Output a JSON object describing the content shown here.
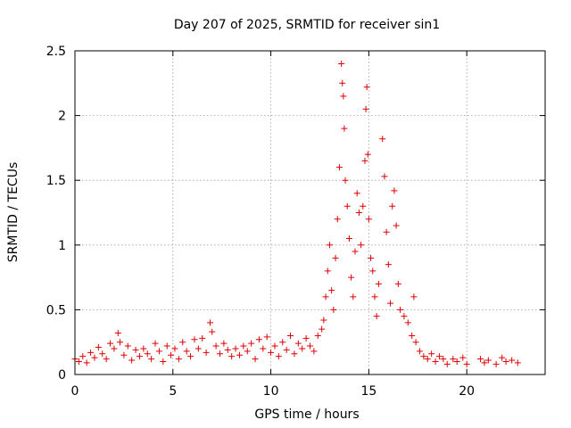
{
  "chart_data": {
    "type": "scatter",
    "title": "Day 207 of 2025, SRMTID for receiver sin1",
    "xlabel": "GPS time / hours",
    "ylabel": "SRMTID / TECUs",
    "xlim": [
      0,
      24
    ],
    "ylim": [
      0,
      2.5
    ],
    "xticks": [
      0,
      5,
      10,
      15,
      20
    ],
    "xtick_labels": [
      "0",
      "5",
      "10",
      "15",
      "20"
    ],
    "yticks": [
      0,
      0.5,
      1,
      1.5,
      2,
      2.5
    ],
    "ytick_labels": [
      "0",
      "0.5",
      "1",
      "1.5",
      "2",
      "2.5"
    ],
    "grid": true,
    "marker": "+",
    "series": [
      {
        "name": "sin1",
        "color": "#e00000",
        "points": [
          [
            0.0,
            0.12
          ],
          [
            0.2,
            0.1
          ],
          [
            0.4,
            0.14
          ],
          [
            0.6,
            0.09
          ],
          [
            0.8,
            0.17
          ],
          [
            1.0,
            0.13
          ],
          [
            1.2,
            0.21
          ],
          [
            1.4,
            0.16
          ],
          [
            1.6,
            0.12
          ],
          [
            1.8,
            0.24
          ],
          [
            2.0,
            0.2
          ],
          [
            2.2,
            0.32
          ],
          [
            2.3,
            0.25
          ],
          [
            2.5,
            0.15
          ],
          [
            2.7,
            0.22
          ],
          [
            2.9,
            0.11
          ],
          [
            3.1,
            0.19
          ],
          [
            3.3,
            0.14
          ],
          [
            3.5,
            0.2
          ],
          [
            3.7,
            0.16
          ],
          [
            3.9,
            0.12
          ],
          [
            4.1,
            0.24
          ],
          [
            4.3,
            0.18
          ],
          [
            4.5,
            0.1
          ],
          [
            4.7,
            0.22
          ],
          [
            4.9,
            0.15
          ],
          [
            5.1,
            0.2
          ],
          [
            5.3,
            0.12
          ],
          [
            5.5,
            0.25
          ],
          [
            5.7,
            0.18
          ],
          [
            5.9,
            0.14
          ],
          [
            6.1,
            0.27
          ],
          [
            6.3,
            0.2
          ],
          [
            6.5,
            0.28
          ],
          [
            6.7,
            0.17
          ],
          [
            6.9,
            0.4
          ],
          [
            7.0,
            0.33
          ],
          [
            7.2,
            0.22
          ],
          [
            7.4,
            0.16
          ],
          [
            7.6,
            0.24
          ],
          [
            7.8,
            0.19
          ],
          [
            8.0,
            0.14
          ],
          [
            8.2,
            0.2
          ],
          [
            8.4,
            0.15
          ],
          [
            8.6,
            0.22
          ],
          [
            8.8,
            0.18
          ],
          [
            9.0,
            0.24
          ],
          [
            9.2,
            0.12
          ],
          [
            9.4,
            0.27
          ],
          [
            9.6,
            0.2
          ],
          [
            9.8,
            0.29
          ],
          [
            10.0,
            0.17
          ],
          [
            10.2,
            0.22
          ],
          [
            10.4,
            0.14
          ],
          [
            10.6,
            0.25
          ],
          [
            10.8,
            0.19
          ],
          [
            11.0,
            0.3
          ],
          [
            11.2,
            0.16
          ],
          [
            11.4,
            0.24
          ],
          [
            11.6,
            0.2
          ],
          [
            11.8,
            0.28
          ],
          [
            12.0,
            0.22
          ],
          [
            12.2,
            0.18
          ],
          [
            12.4,
            0.3
          ],
          [
            12.6,
            0.35
          ],
          [
            12.7,
            0.42
          ],
          [
            12.8,
            0.6
          ],
          [
            12.9,
            0.8
          ],
          [
            13.0,
            1.0
          ],
          [
            13.1,
            0.65
          ],
          [
            13.2,
            0.5
          ],
          [
            13.3,
            0.9
          ],
          [
            13.4,
            1.2
          ],
          [
            13.5,
            1.6
          ],
          [
            13.6,
            2.4
          ],
          [
            13.65,
            2.25
          ],
          [
            13.7,
            2.15
          ],
          [
            13.75,
            1.9
          ],
          [
            13.8,
            1.5
          ],
          [
            13.9,
            1.3
          ],
          [
            14.0,
            1.05
          ],
          [
            14.1,
            0.75
          ],
          [
            14.2,
            0.6
          ],
          [
            14.3,
            0.95
          ],
          [
            14.4,
            1.4
          ],
          [
            14.5,
            1.25
          ],
          [
            14.6,
            1.0
          ],
          [
            14.7,
            1.3
          ],
          [
            14.8,
            1.65
          ],
          [
            14.85,
            2.05
          ],
          [
            14.9,
            2.22
          ],
          [
            14.95,
            1.7
          ],
          [
            15.0,
            1.2
          ],
          [
            15.1,
            0.9
          ],
          [
            15.2,
            0.8
          ],
          [
            15.3,
            0.6
          ],
          [
            15.4,
            0.45
          ],
          [
            15.5,
            0.7
          ],
          [
            15.7,
            1.82
          ],
          [
            15.8,
            1.53
          ],
          [
            15.9,
            1.1
          ],
          [
            16.0,
            0.85
          ],
          [
            16.1,
            0.55
          ],
          [
            16.2,
            1.3
          ],
          [
            16.3,
            1.42
          ],
          [
            16.4,
            1.15
          ],
          [
            16.5,
            0.7
          ],
          [
            16.6,
            0.5
          ],
          [
            16.8,
            0.45
          ],
          [
            17.0,
            0.4
          ],
          [
            17.2,
            0.3
          ],
          [
            17.3,
            0.6
          ],
          [
            17.4,
            0.25
          ],
          [
            17.6,
            0.18
          ],
          [
            17.8,
            0.14
          ],
          [
            18.0,
            0.12
          ],
          [
            18.2,
            0.16
          ],
          [
            18.4,
            0.1
          ],
          [
            18.6,
            0.14
          ],
          [
            18.8,
            0.12
          ],
          [
            19.0,
            0.08
          ],
          [
            19.3,
            0.12
          ],
          [
            19.5,
            0.1
          ],
          [
            19.8,
            0.13
          ],
          [
            20.0,
            0.08
          ],
          [
            20.7,
            0.12
          ],
          [
            20.9,
            0.09
          ],
          [
            21.1,
            0.11
          ],
          [
            21.5,
            0.08
          ],
          [
            21.8,
            0.13
          ],
          [
            22.0,
            0.1
          ],
          [
            22.3,
            0.11
          ],
          [
            22.6,
            0.09
          ]
        ]
      }
    ]
  }
}
